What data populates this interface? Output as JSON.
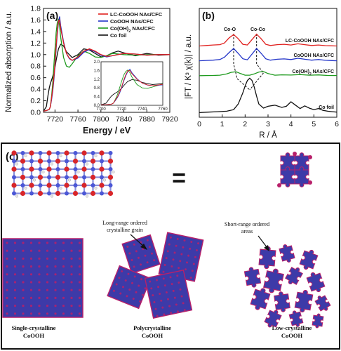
{
  "colors": {
    "red": "#e0201e",
    "blue": "#2234c8",
    "green": "#1d9a1d",
    "black": "#111111",
    "puzzle": "#3d3aa8",
    "puzzle_edge": "#b8206a"
  },
  "chart_data": [
    {
      "panel": "(a)",
      "type": "line",
      "xlabel": "Energy / eV",
      "ylabel": "Normalized absorption / a.u.",
      "xlim": [
        7700,
        7920
      ],
      "ylim": [
        0,
        1.8
      ],
      "xticks": [
        7720,
        7760,
        7800,
        7840,
        7880,
        7920
      ],
      "yticks": [
        0.0,
        0.2,
        0.4,
        0.6,
        0.8,
        1.0,
        1.2,
        1.4,
        1.6,
        1.8
      ],
      "legend_position": "top-right",
      "series": [
        {
          "name": "LC-CoOOH NAs/CFC",
          "color": "red",
          "x": [
            7700,
            7705,
            7710,
            7712,
            7714,
            7716,
            7718,
            7720,
            7722,
            7724,
            7726,
            7728,
            7730,
            7735,
            7740,
            7745,
            7750,
            7760,
            7770,
            7780,
            7790,
            7800,
            7810,
            7820,
            7840,
            7860,
            7880,
            7900,
            7920
          ],
          "y": [
            0.02,
            0.03,
            0.05,
            0.1,
            0.25,
            0.4,
            0.6,
            0.85,
            1.15,
            1.4,
            1.58,
            1.6,
            1.45,
            1.2,
            1.02,
            0.94,
            0.9,
            0.96,
            1.06,
            1.1,
            1.06,
            1.0,
            0.97,
            0.98,
            1.02,
            1.01,
            0.99,
            1.0,
            1.0
          ]
        },
        {
          "name": "CoOOH NAs/CFC",
          "color": "blue",
          "x": [
            7700,
            7705,
            7710,
            7712,
            7714,
            7716,
            7718,
            7720,
            7722,
            7724,
            7726,
            7728,
            7730,
            7735,
            7740,
            7745,
            7750,
            7760,
            7770,
            7780,
            7790,
            7800,
            7810,
            7820,
            7840,
            7860,
            7880,
            7900,
            7920
          ],
          "y": [
            0.02,
            0.03,
            0.05,
            0.1,
            0.22,
            0.36,
            0.55,
            0.8,
            1.1,
            1.35,
            1.55,
            1.66,
            1.5,
            1.22,
            1.02,
            0.93,
            0.9,
            0.94,
            1.04,
            1.09,
            1.05,
            0.99,
            0.96,
            0.98,
            1.02,
            1.01,
            0.99,
            1.0,
            1.0
          ]
        },
        {
          "name": "Co(OH)2 NAs/CFC",
          "color": "green",
          "x": [
            7700,
            7705,
            7710,
            7712,
            7714,
            7716,
            7718,
            7720,
            7722,
            7724,
            7726,
            7728,
            7730,
            7735,
            7740,
            7745,
            7750,
            7760,
            7770,
            7780,
            7790,
            7800,
            7810,
            7820,
            7840,
            7860,
            7880,
            7900,
            7920
          ],
          "y": [
            0.02,
            0.03,
            0.05,
            0.1,
            0.28,
            0.5,
            0.8,
            1.1,
            1.38,
            1.55,
            1.62,
            1.5,
            1.3,
            0.95,
            0.8,
            0.78,
            0.84,
            0.98,
            1.06,
            1.02,
            0.96,
            0.95,
            0.98,
            1.02,
            1.0,
            0.99,
            1.0,
            1.0,
            1.0
          ]
        },
        {
          "name": "Co foil",
          "color": "black",
          "x": [
            7700,
            7705,
            7708,
            7710,
            7712,
            7714,
            7716,
            7718,
            7720,
            7722,
            7724,
            7726,
            7730,
            7735,
            7740,
            7750,
            7760,
            7770,
            7780,
            7790,
            7800,
            7810,
            7820,
            7830,
            7840,
            7860,
            7880,
            7900,
            7920
          ],
          "y": [
            0.02,
            0.1,
            0.3,
            0.42,
            0.5,
            0.56,
            0.62,
            0.7,
            0.78,
            0.9,
            1.0,
            1.1,
            1.18,
            1.15,
            1.05,
            0.95,
            1.0,
            1.1,
            1.08,
            1.02,
            0.96,
            0.98,
            1.03,
            1.06,
            1.03,
            0.98,
            1.02,
            0.99,
            1.0
          ]
        }
      ],
      "inset": {
        "xlim": [
          7700,
          7760
        ],
        "ylim": [
          0,
          2.0
        ],
        "xticks": [
          7700,
          7720,
          7740,
          7760
        ],
        "yticks": [
          0.0,
          0.4,
          0.8,
          1.2,
          1.6,
          2.0
        ]
      }
    },
    {
      "panel": "(b)",
      "type": "line",
      "xlabel": "R / Å",
      "ylabel": "|FT / K³ χ(k)| / a.u.",
      "xlim": [
        0,
        6
      ],
      "xticks": [
        0,
        1,
        2,
        3,
        4,
        5,
        6
      ],
      "annotations": [
        "Co-O",
        "Co-Co"
      ],
      "series": [
        {
          "name": "LC-CoOOH NAs/CFC",
          "color": "red",
          "x": [
            0,
            0.3,
            0.6,
            0.9,
            1.1,
            1.3,
            1.5,
            1.7,
            1.9,
            2.1,
            2.3,
            2.5,
            2.7,
            2.9,
            3.1,
            3.4,
            3.7,
            4.0,
            4.3,
            4.6,
            4.9,
            5.2,
            5.5,
            5.8,
            6.0
          ],
          "y": [
            0.02,
            0.05,
            0.08,
            0.1,
            0.2,
            0.5,
            0.7,
            0.45,
            0.12,
            0.08,
            0.4,
            0.72,
            0.45,
            0.12,
            0.05,
            0.1,
            0.12,
            0.08,
            0.15,
            0.1,
            0.05,
            0.08,
            0.04,
            0.03,
            0.02
          ]
        },
        {
          "name": "CoOOH NAs/CFC",
          "color": "blue",
          "x": [
            0,
            0.3,
            0.6,
            0.9,
            1.1,
            1.3,
            1.5,
            1.7,
            1.9,
            2.1,
            2.3,
            2.5,
            2.7,
            2.9,
            3.1,
            3.4,
            3.7,
            4.0,
            4.3,
            4.6,
            4.9,
            5.2,
            5.5,
            5.8,
            6.0
          ],
          "y": [
            0.02,
            0.04,
            0.06,
            0.1,
            0.25,
            0.55,
            0.82,
            0.5,
            0.15,
            0.08,
            0.45,
            0.82,
            0.5,
            0.15,
            0.06,
            0.12,
            0.14,
            0.1,
            0.18,
            0.12,
            0.06,
            0.1,
            0.05,
            0.03,
            0.02
          ]
        },
        {
          "name": "Co(OH)2 NAs/CFC",
          "color": "green",
          "x": [
            0,
            0.3,
            0.6,
            0.9,
            1.2,
            1.4,
            1.6,
            1.8,
            2.0,
            2.2,
            2.4,
            2.6,
            2.8,
            3.0,
            3.3,
            3.6,
            4.0,
            4.4,
            4.8,
            5.2,
            5.6,
            6.0
          ],
          "y": [
            0.01,
            0.02,
            0.03,
            0.05,
            0.15,
            0.28,
            0.32,
            0.18,
            0.05,
            0.05,
            0.15,
            0.3,
            0.34,
            0.18,
            0.05,
            0.08,
            0.06,
            0.1,
            0.05,
            0.07,
            0.03,
            0.02
          ]
        },
        {
          "name": "Co foil",
          "color": "black",
          "x": [
            0,
            0.4,
            0.8,
            1.2,
            1.5,
            1.7,
            1.9,
            2.0,
            2.1,
            2.2,
            2.3,
            2.4,
            2.5,
            2.6,
            2.8,
            3.0,
            3.3,
            3.6,
            3.8,
            4.0,
            4.2,
            4.4,
            4.6,
            4.8,
            5.0,
            5.2,
            5.4,
            5.6,
            5.8,
            6.0
          ],
          "y": [
            0.02,
            0.04,
            0.06,
            0.08,
            0.15,
            0.4,
            0.9,
            1.2,
            1.45,
            1.55,
            1.45,
            1.15,
            0.75,
            0.4,
            0.22,
            0.3,
            0.35,
            0.25,
            0.3,
            0.5,
            0.35,
            0.2,
            0.32,
            0.22,
            0.15,
            0.2,
            0.12,
            0.08,
            0.06,
            0.04
          ]
        }
      ]
    }
  ],
  "panel_c": {
    "label": "(c)",
    "equals": "=",
    "annotation_long_range": [
      "Long-range ordered",
      "crystalline grain"
    ],
    "annotation_short_range": [
      "Short-range ordered",
      "areas"
    ],
    "captions": [
      [
        "Single-crystalline",
        "CoOOH"
      ],
      [
        "Polycrystalline",
        "CoOOH"
      ],
      [
        "Low-crystalline",
        "CoOOH"
      ]
    ]
  }
}
